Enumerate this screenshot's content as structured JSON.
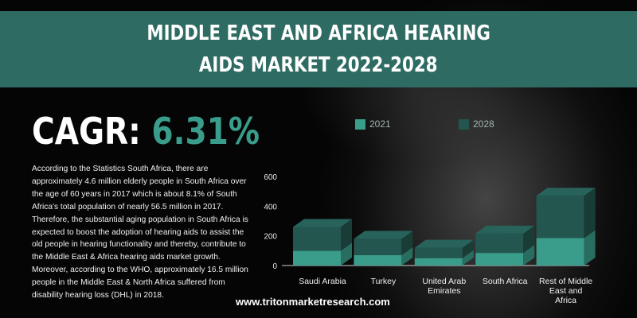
{
  "header": {
    "title_line1": "MIDDLE EAST AND AFRICA HEARING",
    "title_line2": "AIDS MARKET 2022-2028"
  },
  "cagr": {
    "label": "CAGR:",
    "value": "6.31%"
  },
  "description": "According to the Statistics South Africa, there are approximately 4.6 million elderly people in South Africa over the age of 60 years in 2017 which is about 8.1% of South Africa's total population of nearly 56.5 million in 2017. Therefore, the substantial aging population in South Africa is expected to boost the adoption of hearing aids to assist the old people in hearing functionality and thereby, contribute to the Middle East & Africa hearing aids market growth. Moreover, according to the WHO, approximately 16.5 million people in the Middle East & North Africa suffered from disability hearing loss (DHL) in 2018.",
  "footer": {
    "url": "www.tritonmarketresearch.com"
  },
  "colors": {
    "band": "#2e6b62",
    "series_2021": "#3a9c8a",
    "series_2028": "#23564f",
    "accent": "#3a9c8a"
  },
  "chart_data": {
    "type": "bar",
    "stacked": true,
    "categories": [
      "Saudi Arabia",
      "Turkey",
      "United Arab Emirates",
      "South Africa",
      "Rest of Middle East and Africa"
    ],
    "category_lines": [
      [
        "Saudi Arabia"
      ],
      [
        "Turkey"
      ],
      [
        "United Arab",
        "Emirates"
      ],
      [
        "South Africa"
      ],
      [
        "Rest of Middle",
        "East and",
        "Africa"
      ]
    ],
    "series": [
      {
        "name": "2021",
        "values": [
          100,
          70,
          50,
          85,
          185
        ],
        "color": "#3a9c8a"
      },
      {
        "name": "2028",
        "values": [
          160,
          110,
          70,
          130,
          285
        ],
        "color": "#23564f"
      }
    ],
    "ylim": [
      0,
      600
    ],
    "yticks": [
      "0",
      "200",
      "400",
      "600"
    ],
    "legend": "top"
  }
}
